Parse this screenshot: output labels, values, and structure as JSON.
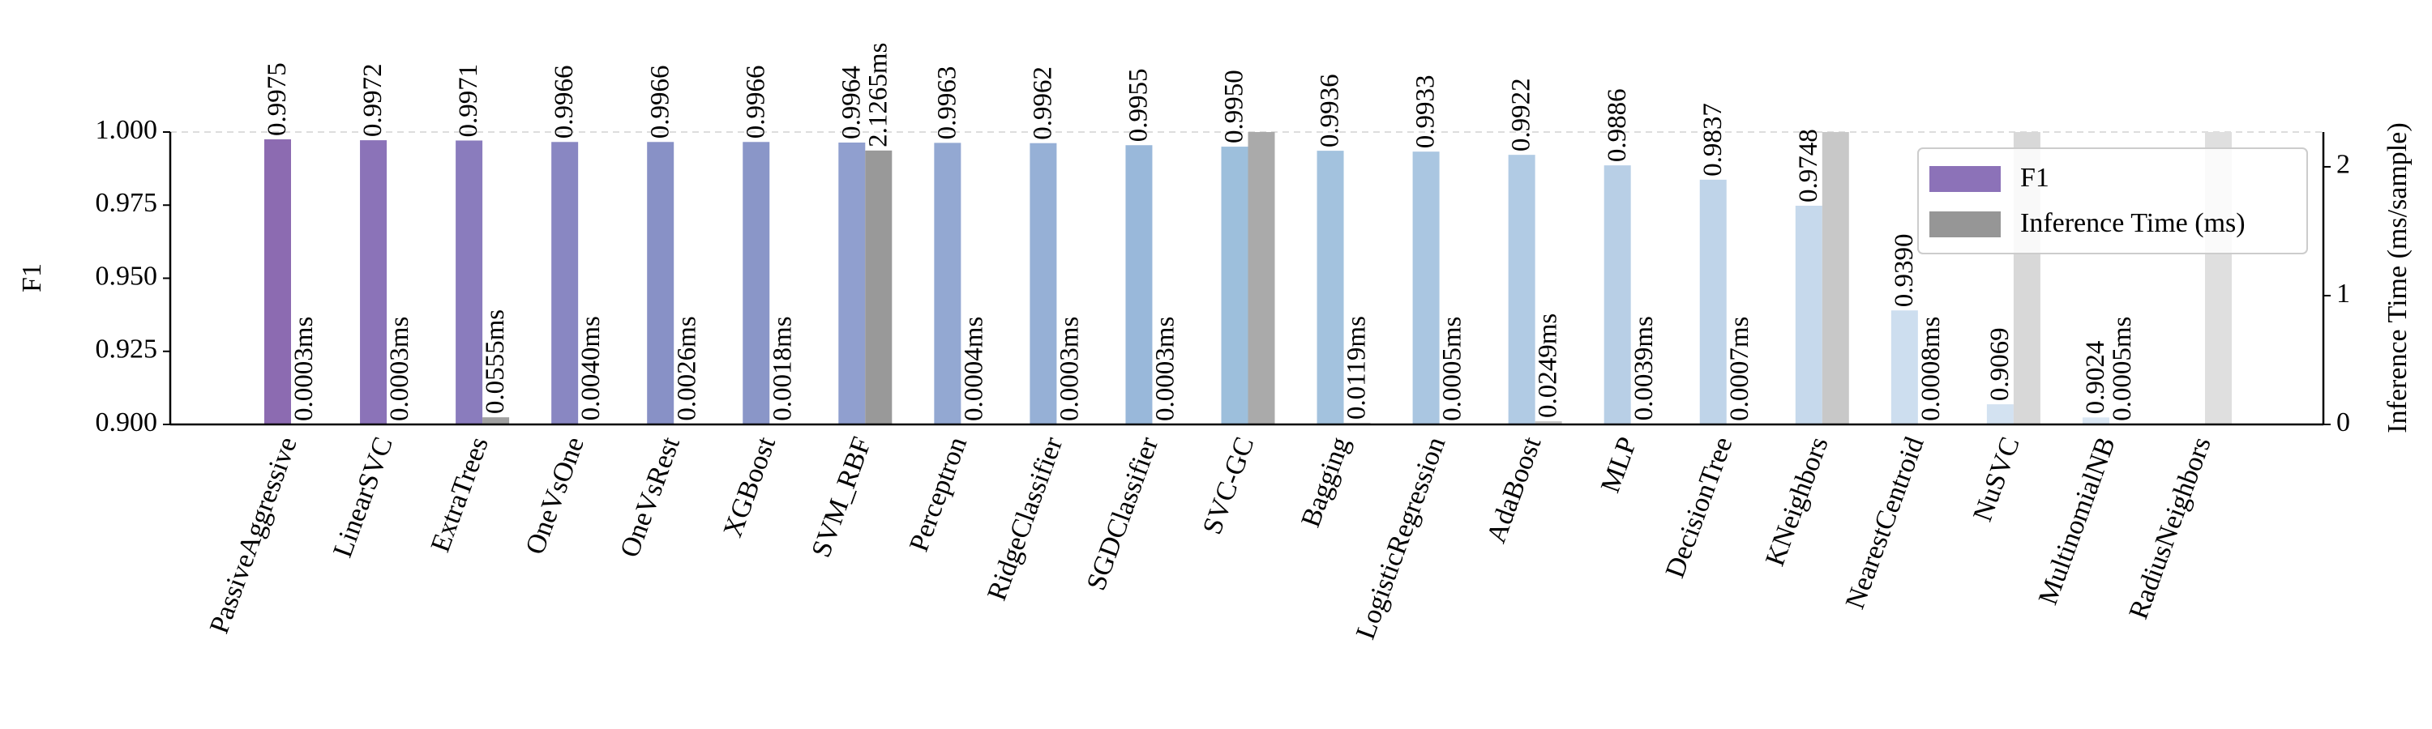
{
  "chart_data": {
    "type": "bar",
    "ylabel": "F1",
    "y2label": "Inference Time (ms/sample)",
    "categories": [
      "PassiveAggressive",
      "LinearSVC",
      "ExtraTrees",
      "OneVsOne",
      "OneVsRest",
      "XGBoost",
      "SVM_RBF",
      "Perceptron",
      "RidgeClassifier",
      "SGDClassifier",
      "SVC-GC",
      "Bagging",
      "LogisticRegression",
      "AdaBoost",
      "MLP",
      "DecisionTree",
      "KNeighbors",
      "NearestCentroid",
      "NuSVC",
      "MultinomialNB",
      "RadiusNeighbors"
    ],
    "series": [
      {
        "name": "F1",
        "color": "#8c72b8",
        "colors": [
          "#8c6bb1",
          "#8b73b8",
          "#8a7cbd",
          "#8987c2",
          "#8891c6",
          "#8a96c8",
          "#909fcf",
          "#93a8d2",
          "#96b0d6",
          "#99b8da",
          "#9dbfdc",
          "#a3c2de",
          "#aac6e1",
          "#b1cbe4",
          "#b8cfe6",
          "#bfd4e9",
          "#c6d9ec",
          "#cddeef",
          "#d3e2f1",
          "#d9e6f3",
          "#dfeaf5"
        ],
        "values": [
          0.9975,
          0.9972,
          0.9971,
          0.9966,
          0.9966,
          0.9966,
          0.9964,
          0.9963,
          0.9962,
          0.9955,
          0.995,
          0.9936,
          0.9933,
          0.9922,
          0.9886,
          0.9837,
          0.9748,
          0.939,
          0.9069,
          0.9024,
          null
        ],
        "value_labels": [
          "0.9975",
          "0.9972",
          "0.9971",
          "0.9966",
          "0.9966",
          "0.9966",
          "0.9964",
          "0.9963",
          "0.9962",
          "0.9955",
          "0.9950",
          "0.9936",
          "0.9933",
          "0.9922",
          "0.9886",
          "0.9837",
          "0.9748",
          "0.9390",
          "0.9069",
          "0.9024",
          null
        ]
      },
      {
        "name": "Inference Time (ms)",
        "color": "#969696",
        "axis": "y2",
        "colors": [
          "#999999",
          "#9c9c9c",
          "#a0a0a0",
          "#a3a3a3",
          "#a7a7a7",
          "#aaaaaa",
          "#999999",
          "#b1b1b1",
          "#b5b5b5",
          "#b8b8b8",
          "#aaaaaa",
          "#bfbfbf",
          "#c3c3c3",
          "#c6c6c6",
          "#cacaca",
          "#cdcdcd",
          "#c8c8c8",
          "#d4d4d4",
          "#d8d8d8",
          "#dbdbdb",
          "#dfdfdf"
        ],
        "values": [
          0.0003,
          0.0003,
          0.0555,
          0.004,
          0.0026,
          0.0018,
          2.1265,
          0.0004,
          0.0003,
          0.0003,
          2.27,
          0.0119,
          0.0005,
          0.0249,
          0.0039,
          0.0007,
          2.27,
          0.0008,
          2.27,
          0.0005,
          2.27
        ],
        "value_labels": [
          "0.0003ms",
          "0.0003ms",
          "0.0555ms",
          "0.0040ms",
          "0.0026ms",
          "0.0018ms",
          "2.1265ms",
          "0.0004ms",
          "0.0003ms",
          "0.0003ms",
          null,
          "0.0119ms",
          "0.0005ms",
          "0.0249ms",
          "0.0039ms",
          "0.0007ms",
          null,
          "0.0008ms",
          null,
          "0.0005ms",
          null
        ]
      }
    ],
    "ylim": [
      0.9,
      1.0
    ],
    "yticks": [
      {
        "value": 0.9,
        "label": "0.900"
      },
      0.925,
      {
        "value": 0.95,
        "label": "0.950"
      },
      0.975,
      {
        "value": 1.0,
        "label": "1.000"
      }
    ],
    "y2lim": [
      0,
      2.27
    ],
    "y2ticks": [
      0,
      1,
      2
    ],
    "legend": "upper right"
  }
}
